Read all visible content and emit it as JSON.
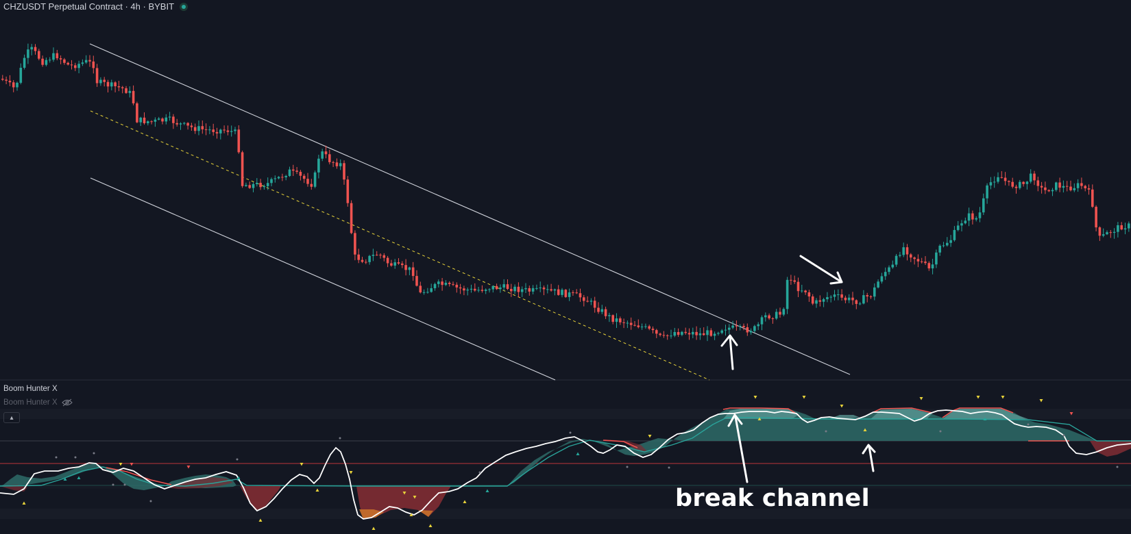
{
  "header": {
    "title": "CHZUSDT Perpetual Contract · 4h · BYBIT",
    "status_color": "#26a69a"
  },
  "indicator": {
    "name": "Boom Hunter X",
    "name_hidden": "Boom Hunter X",
    "hidden_icon": "eye-off-icon",
    "collapse_icon": "chevron-up-icon"
  },
  "annotation": {
    "text": "break channel"
  },
  "colors": {
    "background": "#131722",
    "up": "#26a69a",
    "down": "#ef5350",
    "channel_line": "#d1d4dc",
    "mid_line": "#e8d33a",
    "teal_fill": "#2e6b67",
    "red_fill": "#7a2b33",
    "orange_fill": "#c8702a"
  }
}
